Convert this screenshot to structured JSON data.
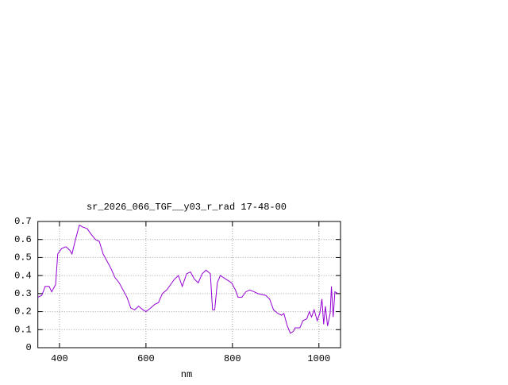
{
  "chart_data": {
    "type": "line",
    "title": "sr_2026_066_TGF__y03_r_rad 17-48-00",
    "x_label": "nm",
    "x": [
      350,
      359,
      367,
      376,
      382,
      391,
      396,
      405,
      415,
      424,
      429,
      437,
      446,
      453,
      464,
      473,
      483,
      492,
      501,
      510,
      519,
      528,
      538,
      547,
      556,
      565,
      574,
      583,
      593,
      600,
      611,
      620,
      629,
      638,
      648,
      657,
      666,
      675,
      684,
      694,
      703,
      712,
      721,
      730,
      739,
      749,
      754,
      759,
      765,
      772,
      785,
      798,
      807,
      813,
      822,
      831,
      840,
      850,
      859,
      877,
      886,
      895,
      905,
      914,
      919,
      927,
      934,
      941,
      945,
      956,
      963,
      972,
      978,
      983,
      989,
      996,
      1002,
      1007,
      1011,
      1015,
      1020,
      1026,
      1029,
      1033,
      1037,
      1044
    ],
    "series": [
      {
        "name": "sr_2026_066_TGF__y03_r_rad 17-48-00",
        "color": "#9400d3",
        "values": [
          0.28,
          0.29,
          0.34,
          0.34,
          0.31,
          0.35,
          0.52,
          0.55,
          0.56,
          0.54,
          0.52,
          0.6,
          0.68,
          0.67,
          0.66,
          0.63,
          0.6,
          0.59,
          0.52,
          0.48,
          0.44,
          0.39,
          0.36,
          0.32,
          0.28,
          0.22,
          0.21,
          0.23,
          0.21,
          0.2,
          0.22,
          0.24,
          0.25,
          0.3,
          0.32,
          0.35,
          0.38,
          0.4,
          0.34,
          0.41,
          0.42,
          0.38,
          0.36,
          0.41,
          0.43,
          0.41,
          0.21,
          0.21,
          0.36,
          0.4,
          0.38,
          0.36,
          0.32,
          0.28,
          0.28,
          0.31,
          0.32,
          0.31,
          0.3,
          0.29,
          0.27,
          0.21,
          0.19,
          0.18,
          0.19,
          0.12,
          0.08,
          0.09,
          0.11,
          0.11,
          0.15,
          0.16,
          0.2,
          0.17,
          0.21,
          0.15,
          0.19,
          0.27,
          0.13,
          0.23,
          0.12,
          0.19,
          0.34,
          0.17,
          0.31,
          0.3
        ]
      }
    ],
    "xlim": [
      350,
      1050
    ],
    "ylim": [
      0,
      0.7
    ],
    "xticks": [
      400,
      600,
      800,
      1000
    ],
    "yticks": [
      0,
      0.1,
      0.2,
      0.3,
      0.4,
      0.5,
      0.6,
      0.7
    ],
    "grid": true
  }
}
